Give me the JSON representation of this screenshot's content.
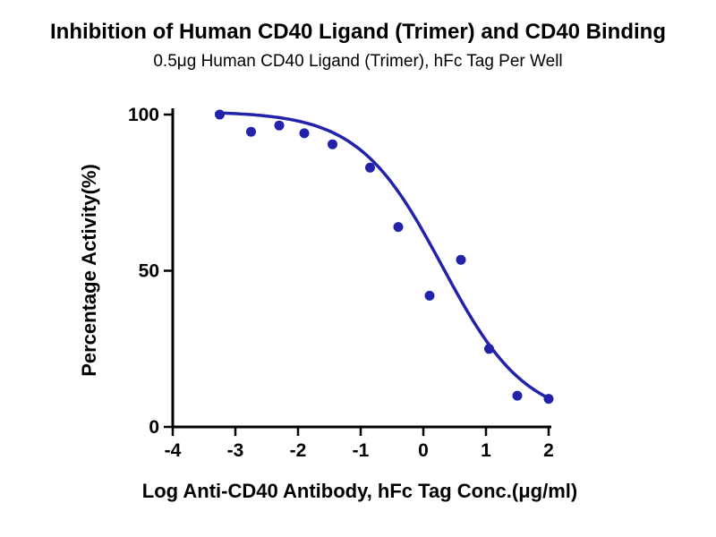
{
  "chart_data": {
    "type": "scatter",
    "title": "Inhibition of Human CD40 Ligand (Trimer) and CD40 Binding",
    "subtitle": "0.5μg Human CD40 Ligand (Trimer), hFc Tag Per Well",
    "xlabel": "Log Anti-CD40 Antibody, hFc Tag Conc.(μg/ml)",
    "ylabel": "Percentage Activity(%)",
    "xlim": [
      -4,
      2
    ],
    "ylim": [
      0,
      100
    ],
    "x_ticks": [
      -4,
      -3,
      -2,
      -1,
      0,
      1,
      2
    ],
    "x_tick_labels": [
      "-4",
      "-3",
      "-2",
      "-1",
      "0",
      "1",
      "2"
    ],
    "y_ticks": [
      0,
      50,
      100
    ],
    "y_tick_labels": [
      "0",
      "50",
      "100"
    ],
    "grid": false,
    "legend": false,
    "marker_color": "#2222AA",
    "line_color": "#2222AA",
    "axis_color": "#000000",
    "points": [
      [
        -3.25,
        100
      ],
      [
        -2.75,
        94.5
      ],
      [
        -2.3,
        96.5
      ],
      [
        -1.9,
        94
      ],
      [
        -1.45,
        90.5
      ],
      [
        -0.85,
        83
      ],
      [
        -0.4,
        64
      ],
      [
        0.1,
        42
      ],
      [
        0.6,
        53.5
      ],
      [
        1.05,
        25
      ],
      [
        1.5,
        10
      ],
      [
        2.0,
        9
      ]
    ],
    "fit_curve": {
      "model": "4PL-inhibition",
      "top": 101,
      "bottom": 2,
      "logIC50": 0.3,
      "hill": 0.65,
      "x_start": -3.3,
      "x_end": 2.0
    }
  }
}
